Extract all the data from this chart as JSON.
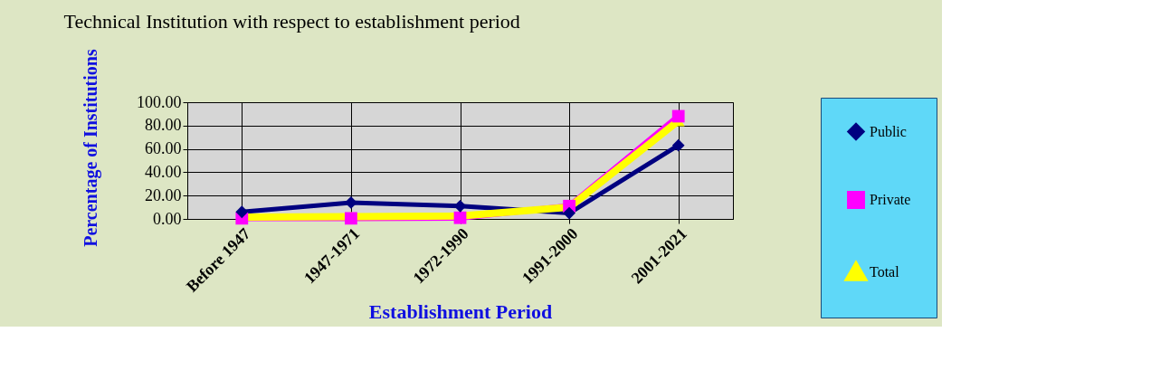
{
  "chart_data": {
    "type": "line",
    "title": "Technical Institution with respect to establishment period",
    "xlabel": "Establishment Period",
    "ylabel": "Percentage of Institutions",
    "categories": [
      "Before 1947",
      "1947-1971",
      "1972-1990",
      "1991-2000",
      "2001-2021"
    ],
    "series": [
      {
        "name": "Public",
        "color": "#000080",
        "marker": "diamond",
        "values": [
          6,
          14,
          11,
          5,
          63
        ]
      },
      {
        "name": "Private",
        "color": "#ff00ff",
        "marker": "square",
        "values": [
          0.5,
          0.5,
          1,
          11,
          88
        ]
      },
      {
        "name": "Total",
        "color": "#ffff00",
        "marker": "triangle",
        "values": [
          1.5,
          2,
          2.5,
          10,
          84
        ]
      }
    ],
    "ylim": [
      0,
      100
    ],
    "yticks": [
      {
        "value": 0,
        "label": "0.00"
      },
      {
        "value": 20,
        "label": "20.00"
      },
      {
        "value": 40,
        "label": "40.00"
      },
      {
        "value": 60,
        "label": "60.00"
      },
      {
        "value": 80,
        "label": "80.00"
      },
      {
        "value": 100,
        "label": "100.00"
      }
    ],
    "grid": true,
    "legend": "right"
  }
}
